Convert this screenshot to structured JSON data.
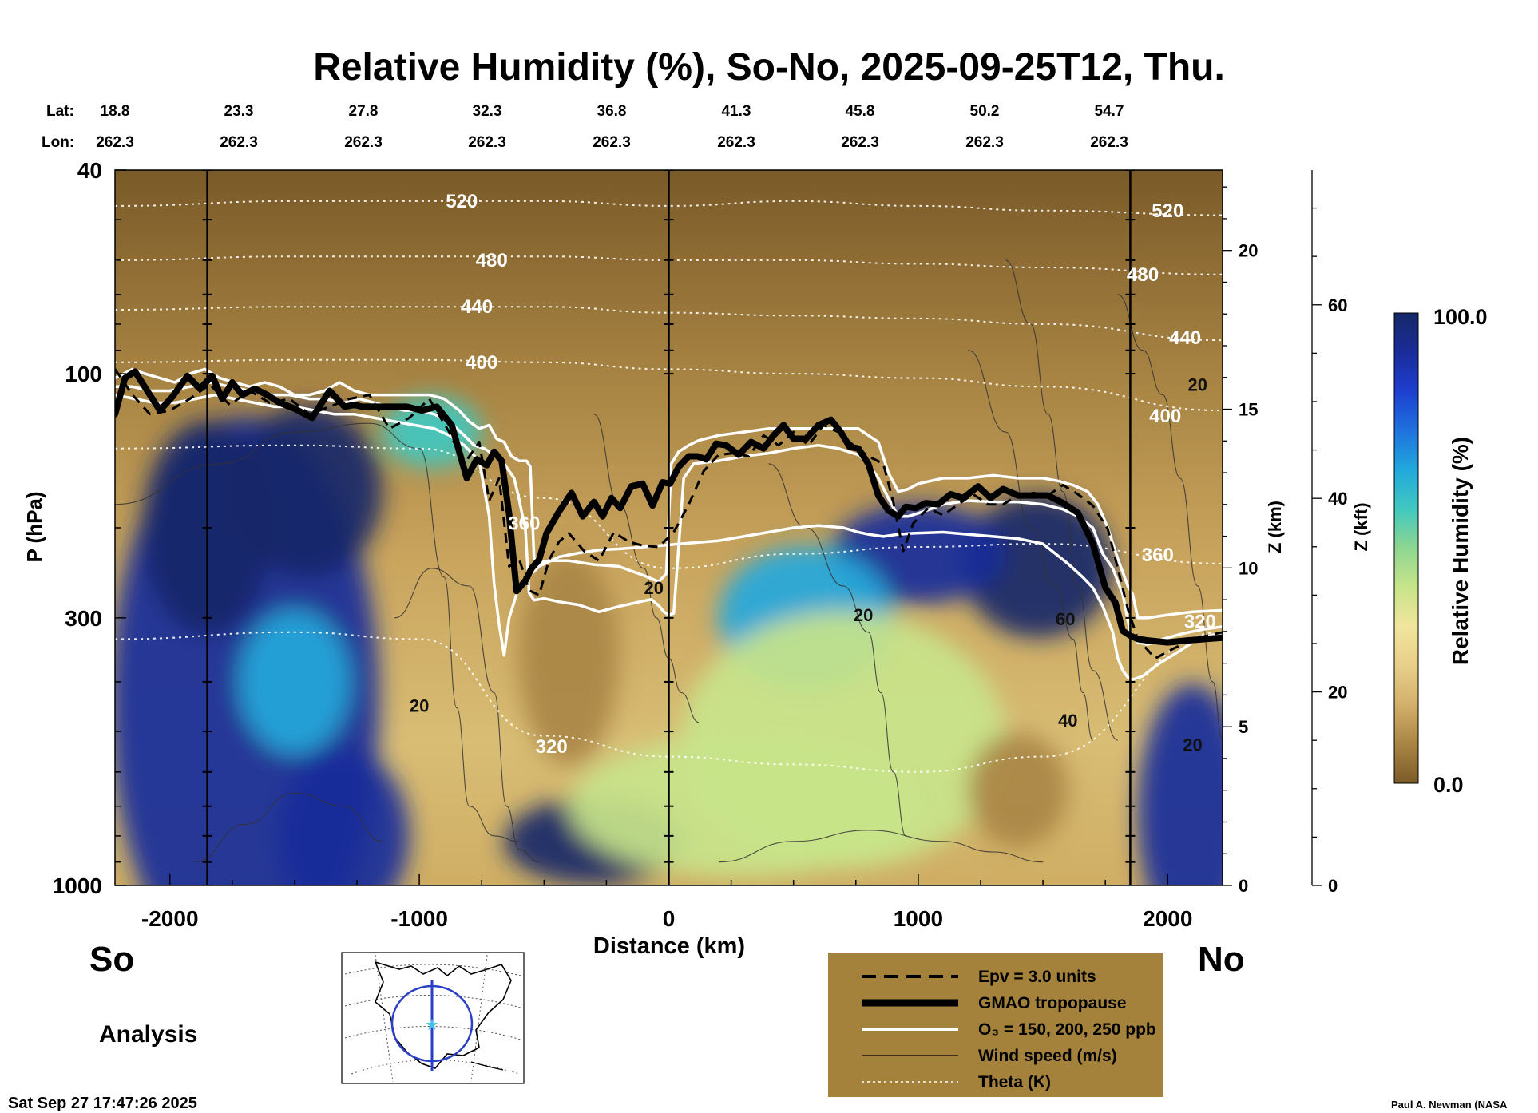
{
  "title": "Relative Humidity (%), So-No, 2025-09-25T12, Thu.",
  "header": {
    "lat_label": "Lat:",
    "lon_label": "Lon:",
    "lat": [
      "18.8",
      "23.3",
      "27.8",
      "32.3",
      "36.8",
      "41.3",
      "45.8",
      "50.2",
      "54.7"
    ],
    "lon": [
      "262.3",
      "262.3",
      "262.3",
      "262.3",
      "262.3",
      "262.3",
      "262.3",
      "262.3",
      "262.3"
    ]
  },
  "left_label": "So",
  "right_label": "No",
  "analysis_label": "Analysis",
  "timestamp": "Sat Sep 27 17:47:26 2025",
  "credit": "Paul A. Newman (NASA",
  "colors": {
    "theta": "#ffffff",
    "tropopause": "#000000",
    "ozone": "#ffffff",
    "wind": "#333333",
    "legend_bg": "#a4823c"
  },
  "colorbar": {
    "label": "Relative Humidity (%)",
    "max_label": "100.0",
    "min_label": "0.0",
    "min": 0,
    "max": 100,
    "stops": [
      "#7a5a28",
      "#a98544",
      "#d2b06a",
      "#e8cf8a",
      "#f1e59c",
      "#c8e48a",
      "#8ed690",
      "#41c8c0",
      "#22a8dc",
      "#1f72de",
      "#1e3fd0",
      "#1a2c9a",
      "#162868"
    ]
  },
  "legend": {
    "items": [
      {
        "style": "dashed",
        "label": "Epv = 3.0 units"
      },
      {
        "style": "thick",
        "label": "GMAO tropopause"
      },
      {
        "style": "white",
        "label": "O₃ = 150, 200, 250 ppb"
      },
      {
        "style": "thin",
        "label": "Wind speed (m/s)"
      },
      {
        "style": "dotted",
        "label": "Theta (K)"
      }
    ]
  },
  "chart_data": {
    "type": "heatmap",
    "title": "Relative Humidity (%), So-No, 2025-09-25T12, Thu.",
    "xlabel": "Distance (km)",
    "ylabel": "P (hPa)",
    "z_km_label": "Z (km)",
    "z_kft_label": "Z (kft)",
    "x_range": [
      -2220,
      2220
    ],
    "p_range": [
      1000,
      40
    ],
    "y_scale": "log",
    "x_ticks": [
      -2000,
      -1000,
      0,
      1000,
      2000
    ],
    "p_ticks": [
      40,
      100,
      300,
      1000
    ],
    "z_km_ticks": [
      0,
      5,
      10,
      15,
      20
    ],
    "z_kft_ticks": [
      0,
      20,
      40,
      60
    ],
    "vertical_markers_km": [
      -1850,
      0,
      1850
    ],
    "theta_labels": [
      {
        "x": -830,
        "p": 46,
        "text": "520"
      },
      {
        "x": -710,
        "p": 60,
        "text": "480"
      },
      {
        "x": -770,
        "p": 74,
        "text": "440"
      },
      {
        "x": -750,
        "p": 95,
        "text": "400"
      },
      {
        "x": -580,
        "p": 196,
        "text": "360"
      },
      {
        "x": -470,
        "p": 535,
        "text": "320"
      },
      {
        "x": 2000,
        "p": 48,
        "text": "520"
      },
      {
        "x": 1900,
        "p": 64,
        "text": "480"
      },
      {
        "x": 2070,
        "p": 85,
        "text": "440"
      },
      {
        "x": 1990,
        "p": 121,
        "text": "400"
      },
      {
        "x": 1960,
        "p": 226,
        "text": "360"
      },
      {
        "x": 2130,
        "p": 305,
        "text": "320"
      }
    ],
    "wind_labels": [
      {
        "x": -1000,
        "p": 445,
        "text": "20"
      },
      {
        "x": -60,
        "p": 262,
        "text": "20"
      },
      {
        "x": 780,
        "p": 296,
        "text": "20"
      },
      {
        "x": 1590,
        "p": 301,
        "text": "60"
      },
      {
        "x": 1600,
        "p": 475,
        "text": "40"
      },
      {
        "x": 2100,
        "p": 530,
        "text": "20"
      },
      {
        "x": 2120,
        "p": 105,
        "text": "20"
      }
    ],
    "tropopause": {
      "x": [
        -2220,
        -2180,
        -2140,
        -2080,
        -2040,
        -1990,
        -1930,
        -1880,
        -1830,
        -1790,
        -1750,
        -1710,
        -1660,
        -1610,
        -1560,
        -1500,
        -1430,
        -1360,
        -1300,
        -1260,
        -1230,
        -1190,
        -1150,
        -1100,
        -1050,
        -990,
        -930,
        -870,
        -810,
        -770,
        -730,
        -700,
        -670,
        -640,
        -610,
        -575,
        -550,
        -520,
        -490,
        -440,
        -390,
        -345,
        -300,
        -265,
        -230,
        -195,
        -150,
        -105,
        -65,
        -25,
        5,
        40,
        80,
        115,
        150,
        190,
        230,
        280,
        330,
        380,
        420,
        460,
        500,
        550,
        600,
        650,
        690,
        725,
        760,
        800,
        840,
        880,
        920,
        950,
        990,
        1030,
        1080,
        1130,
        1180,
        1240,
        1290,
        1340,
        1400,
        1460,
        1520,
        1580,
        1640,
        1700,
        1750,
        1790,
        1820,
        1850,
        1880,
        1920,
        2000,
        2080,
        2150,
        2220
      ],
      "p": [
        120,
        102,
        99,
        110,
        118,
        111,
        101,
        107,
        101,
        112,
        104,
        110,
        107,
        110,
        114,
        117,
        122,
        108,
        116,
        115,
        116,
        116,
        116,
        116,
        116,
        118,
        116,
        126,
        160,
        147,
        151,
        142,
        148,
        188,
        266,
        254,
        240,
        231,
        205,
        186,
        171,
        190,
        178,
        190,
        175,
        183,
        166,
        164,
        181,
        163,
        164,
        152,
        145,
        145,
        147,
        137,
        138,
        144,
        136,
        140,
        132,
        126,
        134,
        134,
        126,
        123,
        130,
        139,
        140,
        150,
        173,
        185,
        190,
        182,
        183,
        179,
        180,
        172,
        175,
        166,
        175,
        168,
        173,
        173,
        173,
        179,
        187,
        215,
        262,
        280,
        318,
        325,
        330,
        332,
        335,
        332,
        330,
        328
      ],
      "y_units": "hPa"
    },
    "epv": {
      "x": [
        -2220,
        -2150,
        -2080,
        -2000,
        -1920,
        -1840,
        -1760,
        -1680,
        -1600,
        -1520,
        -1440,
        -1360,
        -1280,
        -1200,
        -1120,
        -1040,
        -960,
        -880,
        -820,
        -760,
        -720,
        -680,
        -640,
        -600,
        -560,
        -520,
        -480,
        -440,
        -400,
        -340,
        -280,
        -220,
        -160,
        -100,
        -40,
        20,
        80,
        140,
        200,
        260,
        320,
        380,
        440,
        500,
        560,
        620,
        680,
        740,
        800,
        860,
        900,
        940,
        980,
        1040,
        1100,
        1160,
        1220,
        1280,
        1340,
        1400,
        1460,
        1520,
        1580,
        1640,
        1700,
        1760,
        1800,
        1840,
        1880,
        1950,
        2020,
        2100,
        2220
      ],
      "p": [
        98,
        110,
        120,
        118,
        112,
        105,
        115,
        108,
        114,
        112,
        120,
        116,
        112,
        110,
        128,
        122,
        112,
        130,
        150,
        136,
        177,
        160,
        238,
        230,
        265,
        271,
        231,
        213,
        205,
        222,
        232,
        204,
        213,
        217,
        218,
        204,
        180,
        155,
        144,
        143,
        145,
        132,
        138,
        130,
        138,
        126,
        130,
        138,
        145,
        150,
        178,
        222,
        196,
        183,
        189,
        180,
        172,
        180,
        180,
        173,
        171,
        173,
        165,
        172,
        181,
        201,
        240,
        288,
        330,
        360,
        345,
        330,
        320
      ],
      "y_units": "hPa"
    },
    "ozone_contours": [
      {
        "x": [
          -2220,
          -2150,
          -2100,
          -2040,
          -1980,
          -1920,
          -1860,
          -1800,
          -1740,
          -1680,
          -1620,
          -1560,
          -1500,
          -1440,
          -1380,
          -1320,
          -1260,
          -1200,
          -1140,
          -1080,
          -1020,
          -960,
          -900,
          -840,
          -800,
          -760,
          -720,
          -690,
          -660,
          -630,
          -600,
          -570,
          -555,
          -540,
          -520,
          -480,
          -400,
          -300,
          -200,
          -100,
          -40,
          -10,
          10,
          40,
          80,
          120,
          200,
          300,
          400,
          500,
          600,
          700,
          760,
          800,
          840,
          880,
          920,
          960,
          1000,
          1100,
          1200,
          1300,
          1400,
          1500,
          1560,
          1620,
          1680,
          1720,
          1760,
          1800,
          1840,
          1860,
          1880,
          1920,
          2000,
          2100,
          2220
        ],
        "p": [
          102,
          98,
          100,
          102,
          104,
          100,
          98,
          102,
          104,
          106,
          104,
          106,
          110,
          110,
          108,
          104,
          108,
          110,
          110,
          110,
          110,
          110,
          112,
          118,
          124,
          128,
          126,
          134,
          136,
          145,
          148,
          148,
          152,
          230,
          234,
          232,
          232,
          236,
          238,
          248,
          255,
          246,
          150,
          142,
          138,
          135,
          132,
          130,
          128,
          128,
          128,
          128,
          128,
          132,
          136,
          156,
          170,
          168,
          164,
          160,
          160,
          158,
          160,
          160,
          162,
          165,
          170,
          180,
          200,
          230,
          260,
          270,
          300,
          300,
          296,
          292,
          290
        ],
        "y_units": "hPa"
      },
      {
        "x": [
          -2220,
          -2150,
          -2080,
          -2000,
          -1920,
          -1840,
          -1760,
          -1680,
          -1600,
          -1520,
          -1440,
          -1380,
          -1300,
          -1240,
          -1180,
          -1120,
          -1060,
          -1000,
          -940,
          -880,
          -820,
          -780,
          -740,
          -700,
          -660,
          -620,
          -600,
          -590,
          -575,
          -560,
          -540,
          -500,
          -440,
          -360,
          -280,
          -200,
          -130,
          -70,
          -40,
          -20,
          0,
          20,
          60,
          100,
          200,
          300,
          400,
          500,
          600,
          680,
          720,
          760,
          800,
          840,
          880,
          920,
          960,
          1020,
          1100,
          1200,
          1300,
          1400,
          1500,
          1580,
          1640,
          1700,
          1740,
          1780,
          1820,
          1850,
          1880,
          1920,
          1980,
          2060,
          2140,
          2220
        ],
        "p": [
          106,
          106,
          108,
          108,
          106,
          104,
          106,
          108,
          110,
          110,
          112,
          112,
          114,
          112,
          114,
          116,
          118,
          118,
          120,
          124,
          132,
          138,
          140,
          144,
          150,
          160,
          176,
          186,
          200,
          268,
          277,
          275,
          279,
          283,
          292,
          285,
          280,
          276,
          284,
          292,
          296,
          294,
          160,
          150,
          148,
          145,
          143,
          140,
          138,
          140,
          142,
          144,
          150,
          160,
          175,
          190,
          190,
          186,
          180,
          177,
          178,
          178,
          180,
          184,
          190,
          200,
          225,
          240,
          270,
          320,
          335,
          338,
          330,
          322,
          316,
          312
        ],
        "y_units": "hPa"
      },
      {
        "x": [
          -2220,
          -2140,
          -2060,
          -1980,
          -1900,
          -1820,
          -1740,
          -1660,
          -1580,
          -1500,
          -1420,
          -1340,
          -1260,
          -1180,
          -1100,
          -1020,
          -940,
          -880,
          -820,
          -760,
          -720,
          -700,
          -680,
          -660,
          -640,
          -600,
          -520,
          -440,
          -360,
          -280,
          -200,
          -100,
          0,
          100,
          200,
          300,
          400,
          500,
          600,
          700,
          760,
          800,
          860,
          920,
          980,
          1100,
          1200,
          1300,
          1400,
          1500,
          1600,
          1660,
          1700,
          1740,
          1780,
          1800,
          1820,
          1840,
          1860,
          1900,
          1960,
          2040,
          2120,
          2220
        ],
        "p": [
          110,
          112,
          114,
          114,
          112,
          110,
          112,
          114,
          116,
          116,
          118,
          120,
          120,
          122,
          124,
          126,
          128,
          132,
          138,
          148,
          190,
          258,
          310,
          355,
          300,
          260,
          238,
          228,
          224,
          221,
          220,
          218,
          216,
          214,
          212,
          208,
          204,
          200,
          198,
          200,
          204,
          206,
          208,
          206,
          205,
          204,
          206,
          208,
          210,
          215,
          235,
          250,
          262,
          285,
          320,
          360,
          380,
          392,
          396,
          390,
          370,
          350,
          330,
          320
        ],
        "y_units": "hPa"
      }
    ],
    "theta_levels_K": [
      320,
      360,
      400,
      440,
      480,
      520
    ],
    "theta_contours": [
      {
        "level": 520,
        "x": [
          -2220,
          -1500,
          -1000,
          -500,
          0,
          500,
          1000,
          1500,
          2220
        ],
        "p": [
          47,
          46,
          46,
          46,
          47,
          46,
          47,
          48,
          49
        ]
      },
      {
        "level": 480,
        "x": [
          -2220,
          -1500,
          -1000,
          -500,
          0,
          500,
          1000,
          1500,
          2220
        ],
        "p": [
          60,
          59,
          59,
          59,
          60,
          60,
          61,
          62,
          64
        ]
      },
      {
        "level": 440,
        "x": [
          -2220,
          -1500,
          -1000,
          -500,
          0,
          500,
          1000,
          1500,
          2220
        ],
        "p": [
          75,
          74,
          74,
          74,
          76,
          77,
          78,
          80,
          86
        ]
      },
      {
        "level": 400,
        "x": [
          -2220,
          -1500,
          -1000,
          -500,
          0,
          500,
          1000,
          1500,
          2220
        ],
        "p": [
          95,
          94,
          94,
          95,
          98,
          100,
          102,
          106,
          118
        ]
      },
      {
        "level": 360,
        "x": [
          -2220,
          -1500,
          -1000,
          -500,
          0,
          500,
          1000,
          1500,
          2220
        ],
        "p": [
          140,
          138,
          140,
          175,
          240,
          225,
          218,
          215,
          235
        ]
      },
      {
        "level": 320,
        "x": [
          -2220,
          -1500,
          -1000,
          -500,
          0,
          500,
          1000,
          1500,
          2220
        ],
        "p": [
          330,
          320,
          330,
          510,
          560,
          580,
          600,
          560,
          320
        ]
      }
    ],
    "wind_speed_ms": [
      20,
      40,
      60
    ],
    "rh_blobs": [
      {
        "x": -1700,
        "p": 440,
        "rx": 540,
        "ry_frac": 0.4,
        "rh": 92
      },
      {
        "x": -1450,
        "p": 170,
        "rx": 300,
        "ry_frac": 0.12,
        "rh": 98
      },
      {
        "x": -1850,
        "p": 200,
        "rx": 260,
        "ry_frac": 0.15,
        "rh": 100
      },
      {
        "x": -1300,
        "p": 800,
        "rx": 260,
        "ry_frac": 0.12,
        "rh": 94
      },
      {
        "x": -1500,
        "p": 400,
        "rx": 220,
        "ry_frac": 0.1,
        "rh": 70
      },
      {
        "x": 1480,
        "p": 238,
        "rx": 300,
        "ry_frac": 0.1,
        "rh": 99
      },
      {
        "x": 1000,
        "p": 225,
        "rx": 350,
        "ry_frac": 0.07,
        "rh": 88
      },
      {
        "x": 550,
        "p": 300,
        "rx": 350,
        "ry_frac": 0.1,
        "rh": 70
      },
      {
        "x": 700,
        "p": 520,
        "rx": 650,
        "ry_frac": 0.18,
        "rh": 40
      },
      {
        "x": -300,
        "p": 820,
        "rx": 360,
        "ry_frac": 0.06,
        "rh": 98
      },
      {
        "x": 2100,
        "p": 720,
        "rx": 220,
        "ry_frac": 0.18,
        "rh": 95
      },
      {
        "x": -950,
        "p": 130,
        "rx": 200,
        "ry_frac": 0.05,
        "rh": 55
      },
      {
        "x": 300,
        "p": 700,
        "rx": 700,
        "ry_frac": 0.1,
        "rh": 45
      },
      {
        "x": -400,
        "p": 360,
        "rx": 200,
        "ry_frac": 0.15,
        "rh": 10
      },
      {
        "x": 1400,
        "p": 650,
        "rx": 200,
        "ry_frac": 0.08,
        "rh": 5
      }
    ]
  }
}
